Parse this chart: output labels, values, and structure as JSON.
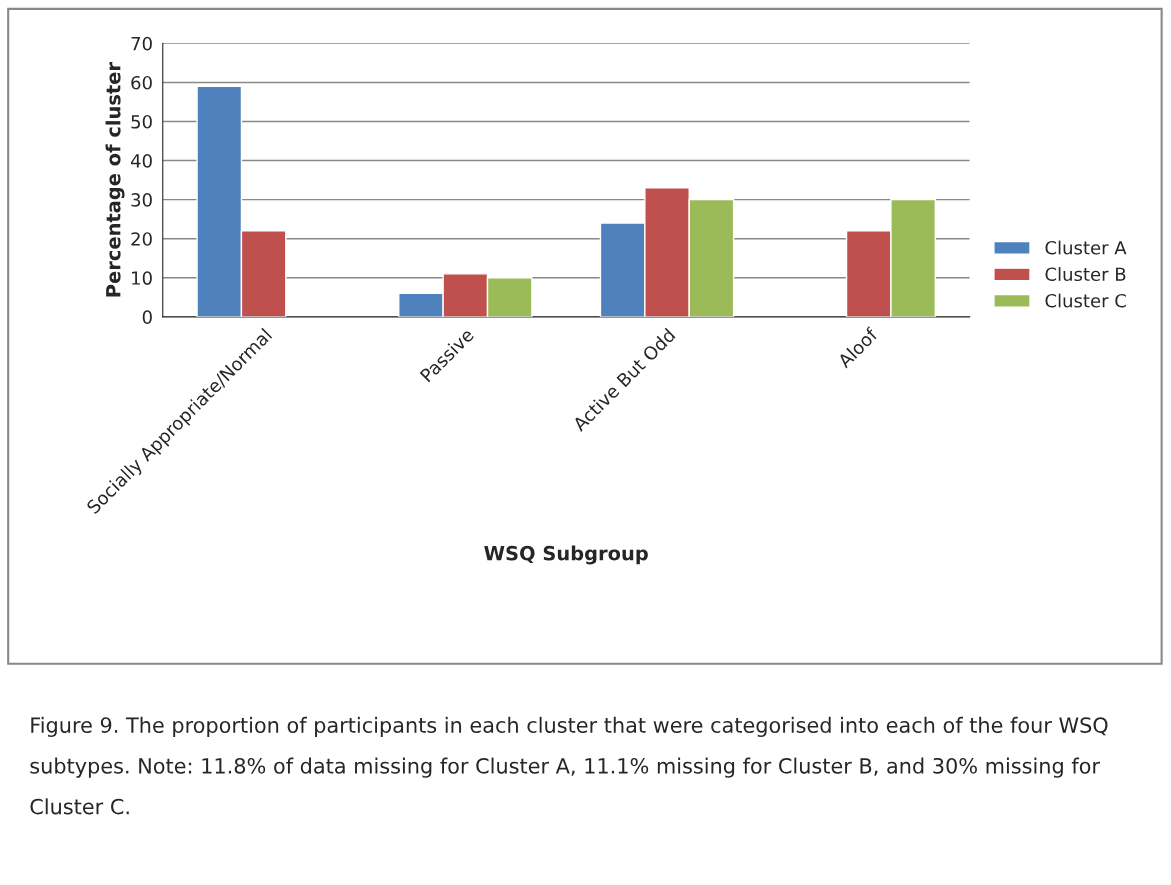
{
  "chart_data": {
    "type": "bar",
    "xlabel": "WSQ Subgroup",
    "ylabel": "Percentage of cluster",
    "categories": [
      "Socially Appropriate/Normal",
      "Passive",
      "Active But Odd",
      "Aloof"
    ],
    "series": [
      {
        "name": "Cluster A",
        "color": "#4f81bd",
        "values": [
          59,
          6,
          24,
          null
        ]
      },
      {
        "name": "Cluster B",
        "color": "#c0504d",
        "values": [
          22,
          11,
          33,
          22
        ]
      },
      {
        "name": "Cluster C",
        "color": "#9bbb59",
        "values": [
          null,
          10,
          30,
          30
        ]
      }
    ],
    "ylim": [
      0,
      70
    ],
    "yticks": [
      0,
      10,
      20,
      30,
      40,
      50,
      60,
      70
    ],
    "grid": "y",
    "legend": "right",
    "annotations": [
      "Figure 9. The proportion of participants in each cluster that were categorised into each of the four WSQ subtypes. Note: 11.8% of data missing for Cluster A, 11.1% missing for Cluster B, and 30% missing for Cluster C."
    ]
  }
}
